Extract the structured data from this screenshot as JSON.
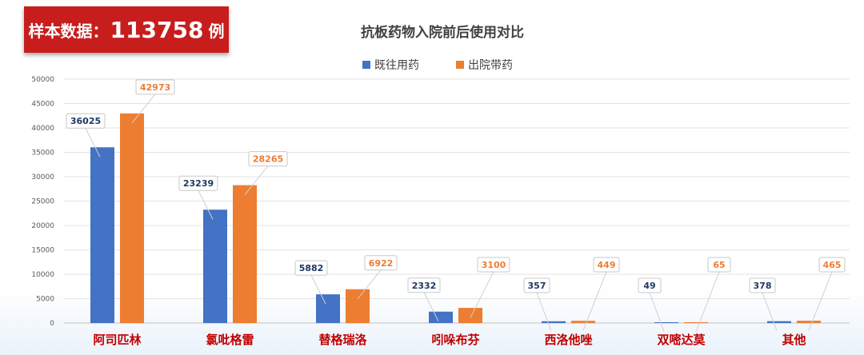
{
  "badge": {
    "label": "样本数据：",
    "count": "113758",
    "unit": "例",
    "color": "#c81d1d"
  },
  "chart_data": {
    "type": "bar",
    "title": "抗板药物入院前后使用对比",
    "categories": [
      "阿司匹林",
      "氯吡格雷",
      "替格瑞洛",
      "吲哚布芬",
      "西洛他唑",
      "双嘧达莫",
      "其他"
    ],
    "series": [
      {
        "name": "既往用药",
        "color": "#4472c4",
        "label_color": "#1f3864",
        "values": [
          36025,
          23239,
          5882,
          2332,
          357,
          49,
          378
        ]
      },
      {
        "name": "出院带药",
        "color": "#ed7d31",
        "label_color": "#ed7d31",
        "values": [
          42973,
          28265,
          6922,
          3100,
          449,
          65,
          465
        ]
      }
    ],
    "ylim": [
      0,
      50000
    ],
    "yticks": [
      0,
      5000,
      10000,
      15000,
      20000,
      25000,
      30000,
      35000,
      40000,
      45000,
      50000
    ],
    "grid": true,
    "legend_position": "top-center",
    "category_label_color": "#c00000",
    "xlabel": "",
    "ylabel": ""
  }
}
